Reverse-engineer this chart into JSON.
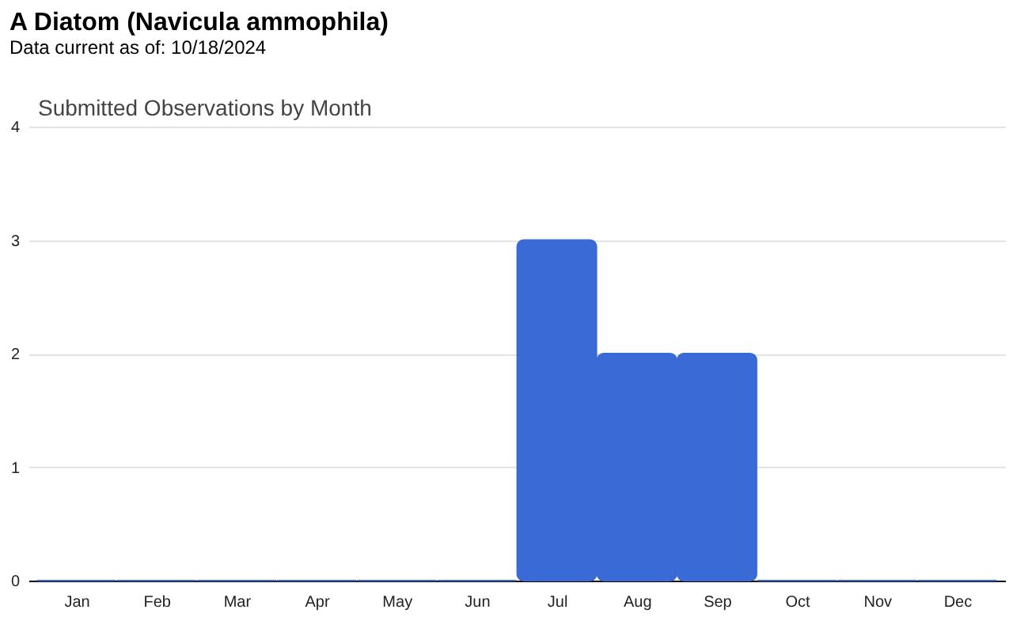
{
  "chart_data": {
    "type": "bar",
    "title": "A Diatom   (Navicula ammophila)",
    "subtitle": "Data current as of: 10/18/2024",
    "annotations": [
      "Submitted Observations by Month"
    ],
    "categories": [
      "Jan",
      "Feb",
      "Mar",
      "Apr",
      "May",
      "Jun",
      "Jul",
      "Aug",
      "Sep",
      "Oct",
      "Nov",
      "Dec"
    ],
    "values": [
      0,
      0,
      0,
      0,
      0,
      0,
      3,
      2,
      2,
      0,
      0,
      0
    ],
    "color": "#3a6ad6",
    "ylim": [
      0,
      4
    ],
    "yticks": [
      0,
      1,
      2,
      3,
      4
    ],
    "grid": "y"
  }
}
